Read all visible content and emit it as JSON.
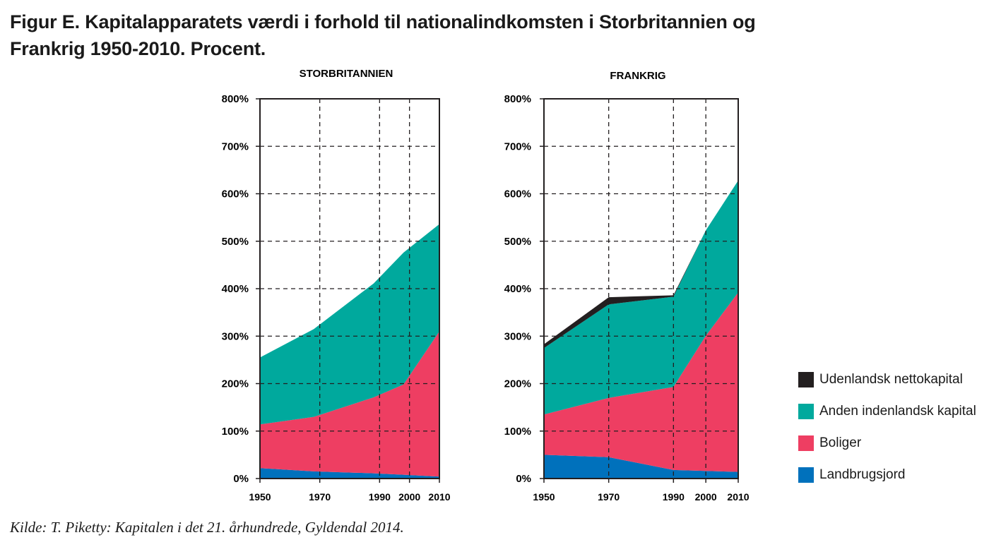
{
  "title_line1": "Figur E. Kapitalapparatets værdi i forhold til nationalindkomsten i Storbritannien og",
  "title_line2": "Frankrig 1950-2010. Procent.",
  "source": "Kilde: T. Piketty: Kapitalen i det 21. århundrede, Gyldendal 2014.",
  "colors": {
    "udenlandsk": "#231f20",
    "anden": "#00a99d",
    "boliger": "#ee3e62",
    "landbrug": "#0071bc"
  },
  "legend": [
    {
      "key": "udenlandsk",
      "label": "Udenlandsk nettokapital"
    },
    {
      "key": "anden",
      "label": "Anden indenlandsk kapital"
    },
    {
      "key": "boliger",
      "label": "Boliger"
    },
    {
      "key": "landbrug",
      "label": "Landbrugsjord"
    }
  ],
  "chart_data": [
    {
      "type": "area",
      "stacked": true,
      "title": "STORBRITANNIEN",
      "x_ticks": [
        "1950",
        "1970",
        "1990",
        "2000",
        "2010"
      ],
      "y_ticks": [
        "0%",
        "100%",
        "200%",
        "300%",
        "400%",
        "500%",
        "600%",
        "700%",
        "800%"
      ],
      "ylim": [
        0,
        800
      ],
      "xlim": [
        1950,
        2010
      ],
      "grid": true,
      "x": [
        1950,
        1968,
        1988,
        1998,
        2010
      ],
      "series": [
        {
          "name": "Landbrugsjord",
          "key": "landbrug",
          "values": [
            22,
            15,
            11,
            8,
            4
          ]
        },
        {
          "name": "Boliger",
          "key": "boliger",
          "values": [
            92,
            115,
            160,
            190,
            306
          ]
        },
        {
          "name": "Anden indenlandsk kapital",
          "key": "anden",
          "values": [
            141,
            185,
            240,
            278,
            226
          ]
        },
        {
          "name": "Udenlandsk nettokapital",
          "key": "udenlandsk",
          "values": [
            0,
            0,
            0,
            0,
            0
          ]
        }
      ]
    },
    {
      "type": "area",
      "stacked": true,
      "title": "FRANKRIG",
      "x_ticks": [
        "1950",
        "1970",
        "1990",
        "2000",
        "2010"
      ],
      "y_ticks": [
        "0%",
        "100%",
        "200%",
        "300%",
        "400%",
        "500%",
        "600%",
        "700%",
        "800%"
      ],
      "ylim": [
        0,
        800
      ],
      "xlim": [
        1950,
        2010
      ],
      "grid": true,
      "x": [
        1950,
        1970,
        1990,
        2000,
        2010
      ],
      "series": [
        {
          "name": "Landbrugsjord",
          "key": "landbrug",
          "values": [
            50,
            45,
            18,
            16,
            14
          ]
        },
        {
          "name": "Boliger",
          "key": "boliger",
          "values": [
            85,
            125,
            175,
            285,
            378
          ]
        },
        {
          "name": "Anden indenlandsk kapital",
          "key": "anden",
          "values": [
            140,
            197,
            190,
            222,
            236
          ]
        },
        {
          "name": "Udenlandsk nettokapital",
          "key": "udenlandsk",
          "values": [
            8,
            15,
            3,
            0,
            0
          ]
        }
      ]
    }
  ]
}
